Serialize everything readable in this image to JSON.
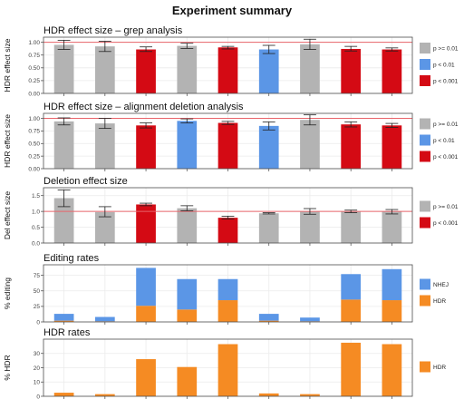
{
  "title": "Experiment summary",
  "colors": {
    "grey": "#b3b3b3",
    "blue": "#5b96e6",
    "red": "#d40a14",
    "orange": "#f58b23",
    "refline": "#e8646b",
    "panel_border": "#4d4d4d",
    "grid": "#ebebeb"
  },
  "chart_data": [
    {
      "id": "grep",
      "type": "bar",
      "title": "HDR effect size – grep analysis",
      "ylabel": "HDR effect size",
      "ylim": [
        0,
        1.1
      ],
      "yticks": [
        "0.00",
        "0.25",
        "0.50",
        "0.75",
        "1.00"
      ],
      "yticks_values": [
        0,
        0.25,
        0.5,
        0.75,
        1.0
      ],
      "refline": 1.0,
      "legend": [
        {
          "key": "grey",
          "label": "p >= 0.01"
        },
        {
          "key": "blue",
          "label": "p < 0.01"
        },
        {
          "key": "red",
          "label": "p < 0.001"
        }
      ],
      "bars": [
        {
          "value": 0.95,
          "err": [
            0.86,
            1.04
          ],
          "color": "grey"
        },
        {
          "value": 0.92,
          "err": [
            0.82,
            1.02
          ],
          "color": "grey"
        },
        {
          "value": 0.86,
          "err": [
            0.82,
            0.91
          ],
          "color": "red"
        },
        {
          "value": 0.93,
          "err": [
            0.88,
            0.98
          ],
          "color": "grey"
        },
        {
          "value": 0.9,
          "err": [
            0.87,
            0.92
          ],
          "color": "red"
        },
        {
          "value": 0.86,
          "err": [
            0.78,
            0.94
          ],
          "color": "blue"
        },
        {
          "value": 0.96,
          "err": [
            0.86,
            1.06
          ],
          "color": "grey"
        },
        {
          "value": 0.87,
          "err": [
            0.83,
            0.92
          ],
          "color": "red"
        },
        {
          "value": 0.86,
          "err": [
            0.83,
            0.89
          ],
          "color": "red"
        }
      ]
    },
    {
      "id": "deletion",
      "type": "bar",
      "title": "HDR effect size – alignment deletion analysis",
      "ylabel": "HDR effect size",
      "ylim": [
        0,
        1.1
      ],
      "yticks": [
        "0.00",
        "0.25",
        "0.50",
        "0.75",
        "1.00"
      ],
      "yticks_values": [
        0,
        0.25,
        0.5,
        0.75,
        1.0
      ],
      "refline": 1.0,
      "legend": [
        {
          "key": "grey",
          "label": "p >= 0.01"
        },
        {
          "key": "blue",
          "label": "p < 0.01"
        },
        {
          "key": "red",
          "label": "p < 0.001"
        }
      ],
      "bars": [
        {
          "value": 0.94,
          "err": [
            0.87,
            1.01
          ],
          "color": "grey"
        },
        {
          "value": 0.9,
          "err": [
            0.8,
            1.0
          ],
          "color": "grey"
        },
        {
          "value": 0.86,
          "err": [
            0.81,
            0.91
          ],
          "color": "red"
        },
        {
          "value": 0.95,
          "err": [
            0.91,
            0.99
          ],
          "color": "blue"
        },
        {
          "value": 0.91,
          "err": [
            0.88,
            0.94
          ],
          "color": "red"
        },
        {
          "value": 0.85,
          "err": [
            0.77,
            0.93
          ],
          "color": "blue"
        },
        {
          "value": 0.97,
          "err": [
            0.87,
            1.07
          ],
          "color": "grey"
        },
        {
          "value": 0.88,
          "err": [
            0.83,
            0.93
          ],
          "color": "red"
        },
        {
          "value": 0.86,
          "err": [
            0.82,
            0.9
          ],
          "color": "red"
        }
      ]
    },
    {
      "id": "deleffect",
      "type": "bar",
      "title": "Deletion effect size",
      "ylabel": "Del effect size",
      "ylim": [
        0,
        1.75
      ],
      "yticks": [
        "0.0",
        "0.5",
        "1.0",
        "1.5"
      ],
      "yticks_values": [
        0,
        0.5,
        1.0,
        1.5
      ],
      "refline": 1.0,
      "legend": [
        {
          "key": "grey",
          "label": "p >= 0.01"
        },
        {
          "key": "red",
          "label": "p < 0.001"
        }
      ],
      "bars": [
        {
          "value": 1.42,
          "err": [
            1.15,
            1.68
          ],
          "color": "grey"
        },
        {
          "value": 0.98,
          "err": [
            0.83,
            1.15
          ],
          "color": "grey"
        },
        {
          "value": 1.22,
          "err": [
            1.18,
            1.26
          ],
          "color": "red"
        },
        {
          "value": 1.1,
          "err": [
            1.02,
            1.18
          ],
          "color": "grey"
        },
        {
          "value": 0.8,
          "err": [
            0.76,
            0.85
          ],
          "color": "red"
        },
        {
          "value": 0.94,
          "err": [
            0.92,
            0.96
          ],
          "color": "grey"
        },
        {
          "value": 1.0,
          "err": [
            0.91,
            1.09
          ],
          "color": "grey"
        },
        {
          "value": 1.0,
          "err": [
            0.96,
            1.04
          ],
          "color": "grey"
        },
        {
          "value": 0.99,
          "err": [
            0.92,
            1.06
          ],
          "color": "grey"
        }
      ]
    },
    {
      "id": "editing",
      "type": "bar",
      "stacked": true,
      "title": "Editing rates",
      "ylabel": "% editing",
      "ylim": [
        0,
        92
      ],
      "yticks": [
        "0",
        "25",
        "50",
        "75"
      ],
      "yticks_values": [
        0,
        25,
        50,
        75
      ],
      "legend": [
        {
          "key": "blue",
          "label": "NHEJ"
        },
        {
          "key": "orange",
          "label": "HDR"
        }
      ],
      "series": [
        {
          "name": "HDR",
          "color": "orange",
          "values": [
            2,
            1,
            26,
            20,
            35,
            2,
            1,
            36,
            35
          ]
        },
        {
          "name": "NHEJ",
          "color": "blue",
          "values": [
            11,
            7,
            61,
            49,
            34,
            11,
            6,
            41,
            50
          ]
        }
      ]
    },
    {
      "id": "hdr",
      "type": "bar",
      "title": "HDR rates",
      "ylabel": "% HDR",
      "ylim": [
        0,
        40
      ],
      "yticks": [
        "0",
        "10",
        "20",
        "30"
      ],
      "yticks_values": [
        0,
        10,
        20,
        30
      ],
      "legend": [
        {
          "key": "orange",
          "label": "HDR"
        }
      ],
      "bars": [
        {
          "value": 2.5,
          "color": "orange"
        },
        {
          "value": 1.5,
          "color": "orange"
        },
        {
          "value": 26,
          "color": "orange"
        },
        {
          "value": 20.5,
          "color": "orange"
        },
        {
          "value": 36.5,
          "color": "orange"
        },
        {
          "value": 2,
          "color": "orange"
        },
        {
          "value": 1.5,
          "color": "orange"
        },
        {
          "value": 37.5,
          "color": "orange"
        },
        {
          "value": 36.5,
          "color": "orange"
        }
      ]
    }
  ]
}
